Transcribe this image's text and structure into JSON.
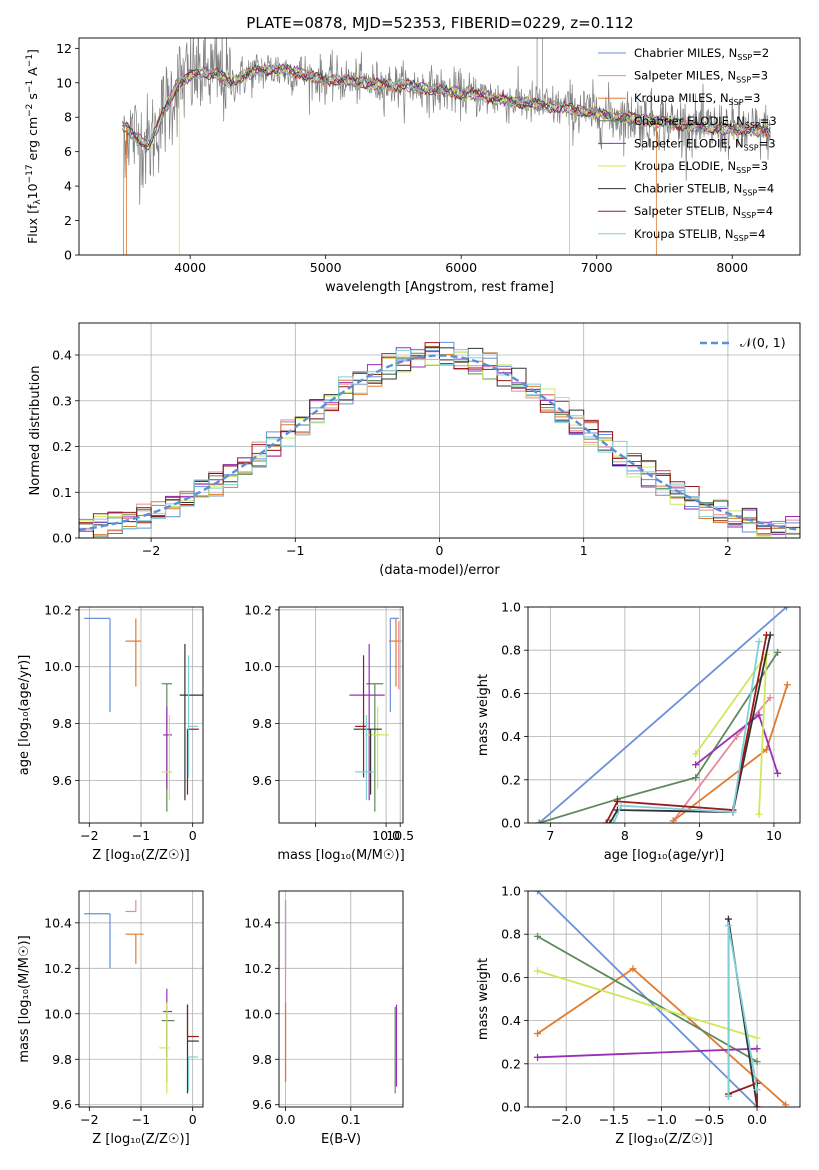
{
  "figure_title": "PLATE=0878, MJD=52353, FIBERID=0229, z=0.112",
  "series_colors": [
    "#6b8fd9",
    "#e8899b",
    "#e07a2e",
    "#5d8a5d",
    "#9a2fb5",
    "#cfe85a",
    "#333333",
    "#9b1b1b",
    "#7fd0d8"
  ],
  "data_color": "#808080",
  "chart_data": [
    {
      "id": "spectrum",
      "type": "line",
      "title": "PLATE=0878, MJD=52353, FIBERID=0229, z=0.112",
      "xlabel": "wavelength [Angstrom, rest frame]",
      "ylabel": "Flux [f$_\\lambda$10$^{-17}$ erg cm$^{-2}$ s$^{-1}$ A$^{-1}$]",
      "ylabel_parts": [
        "Flux [f",
        "λ",
        "10",
        "−17",
        " erg cm",
        "−2",
        " s",
        "−1",
        " A",
        "−1",
        "]"
      ],
      "xlim": [
        3180,
        8500
      ],
      "ylim": [
        0,
        12.6
      ],
      "xticks": [
        4000,
        5000,
        6000,
        7000,
        8000
      ],
      "yticks": [
        0,
        2,
        4,
        6,
        8,
        10,
        12
      ],
      "grid": false,
      "legend_position": "top-right",
      "legend": [
        {
          "label": "Chabrier MILES, N",
          "sub": "SSP",
          "suffix": "=2"
        },
        {
          "label": "Salpeter MILES, N",
          "sub": "SSP",
          "suffix": "=3"
        },
        {
          "label": "Kroupa MILES, N",
          "sub": "SSP",
          "suffix": "=3"
        },
        {
          "label": "Chabrier ELODIE, N",
          "sub": "SSP",
          "suffix": "=3"
        },
        {
          "label": "Salpeter ELODIE, N",
          "sub": "SSP",
          "suffix": "=3"
        },
        {
          "label": "Kroupa ELODIE, N",
          "sub": "SSP",
          "suffix": "=3"
        },
        {
          "label": "Chabrier STELIB, N",
          "sub": "SSP",
          "suffix": "=4"
        },
        {
          "label": "Salpeter STELIB, N",
          "sub": "SSP",
          "suffix": "=4"
        },
        {
          "label": "Kroupa STELIB, N",
          "sub": "SSP",
          "suffix": "=4"
        }
      ],
      "continuum": {
        "x": [
          3500,
          3600,
          3700,
          3800,
          3900,
          4000,
          4100,
          4200,
          4300,
          4400,
          4500,
          4600,
          4700,
          4800,
          4900,
          5000,
          5200,
          5400,
          5600,
          5800,
          6000,
          6200,
          6400,
          6600,
          6800,
          7000,
          7200,
          7400,
          7600,
          7800,
          8000,
          8200,
          8280
        ],
        "y": [
          7.6,
          6.8,
          6.4,
          8.2,
          9.8,
          10.4,
          10.6,
          10.5,
          10.0,
          10.4,
          10.7,
          10.8,
          10.7,
          10.6,
          10.3,
          10.2,
          10.1,
          9.9,
          9.8,
          9.6,
          9.4,
          9.2,
          8.9,
          8.7,
          8.5,
          8.2,
          8.0,
          7.8,
          7.6,
          7.4,
          7.3,
          7.2,
          7.2
        ]
      },
      "model_range": [
        3500,
        8280
      ]
    },
    {
      "id": "residual_hist",
      "type": "line",
      "xlabel": "(data-model)/error",
      "ylabel": "Normed distribution",
      "xlim": [
        -2.5,
        2.5
      ],
      "ylim": [
        0,
        0.47
      ],
      "xticks": [
        -2,
        -1,
        0,
        1,
        2
      ],
      "yticks": [
        0.0,
        0.1,
        0.2,
        0.3,
        0.4
      ],
      "grid": true,
      "legend_position": "top-right",
      "legend_label": "𝒩(0, 1)",
      "bin_width": 0.1
    },
    {
      "id": "age_vs_Z",
      "type": "scatter",
      "xlabel": "Z [log₁₀(Z/Z☉)]",
      "ylabel": "age  [log₁₀(age/yr)]",
      "xlim": [
        -2.2,
        0.2
      ],
      "ylim": [
        9.45,
        10.21
      ],
      "xticks": [
        -2,
        -1,
        0
      ],
      "yticks": [
        9.6,
        9.8,
        10.0,
        10.2
      ],
      "grid": true,
      "points": [
        {
          "x": -1.6,
          "y": 10.17,
          "xerr": [
            0.5,
            0.0
          ],
          "yerr": [
            0.33,
            0.0
          ]
        },
        {
          "x": -1.1,
          "y": 10.17,
          "xerr": [
            0.0,
            0.0
          ],
          "yerr": [
            0.0,
            0.0
          ]
        },
        {
          "x": -1.1,
          "y": 10.09,
          "xerr": [
            0.2,
            0.1
          ],
          "yerr": [
            0.16,
            0.08
          ]
        },
        {
          "x": -0.5,
          "y": 9.94,
          "xerr": [
            0.1,
            0.1
          ],
          "yerr": [
            0.45,
            0.0
          ]
        },
        {
          "x": -0.5,
          "y": 9.76,
          "xerr": [
            0.07,
            0.1
          ],
          "yerr": [
            0.19,
            0.1
          ]
        },
        {
          "x": -0.45,
          "y": 9.63,
          "xerr": [
            0.15,
            0.05
          ],
          "yerr": [
            0.1,
            0.2
          ]
        },
        {
          "x": -0.15,
          "y": 9.9,
          "xerr": [
            0.1,
            0.35
          ],
          "yerr": [
            0.37,
            0.18
          ]
        },
        {
          "x": -0.1,
          "y": 9.78,
          "xerr": [
            0.0,
            0.22
          ],
          "yerr": [
            0.23,
            0.0
          ]
        },
        {
          "x": -0.08,
          "y": 9.79,
          "xerr": [
            0.0,
            0.18
          ],
          "yerr": [
            0.18,
            0.25
          ]
        }
      ]
    },
    {
      "id": "age_vs_mass",
      "type": "scatter",
      "xlabel": "mass [log₁₀(M/M☉)]",
      "xlim": [
        6.2,
        10.6
      ],
      "ylim": [
        9.45,
        10.21
      ],
      "xticks": [
        7.5,
        10.0,
        10.5
      ],
      "xticks_labeled": [
        10.0,
        10.5
      ],
      "yticks": [
        9.6,
        9.8,
        10.0,
        10.2
      ],
      "grid": true,
      "points": [
        {
          "x": 10.15,
          "y": 10.17,
          "xerr": [
            0.0,
            0.3
          ],
          "yerr": [
            0.33,
            0.0
          ]
        },
        {
          "x": 10.45,
          "y": 10.09,
          "xerr": [
            0.0,
            0.1
          ],
          "yerr": [
            0.17,
            0.07
          ]
        },
        {
          "x": 10.35,
          "y": 10.09,
          "xerr": [
            0.25,
            0.1
          ],
          "yerr": [
            0.16,
            0.08
          ]
        },
        {
          "x": 9.6,
          "y": 9.94,
          "xerr": [
            0.3,
            0.3
          ],
          "yerr": [
            0.45,
            0.0
          ]
        },
        {
          "x": 9.4,
          "y": 9.9,
          "xerr": [
            0.7,
            0.55
          ],
          "yerr": [
            0.37,
            0.18
          ]
        },
        {
          "x": 9.7,
          "y": 9.76,
          "xerr": [
            0.4,
            0.4
          ],
          "yerr": [
            0.19,
            0.1
          ]
        },
        {
          "x": 9.45,
          "y": 9.78,
          "xerr": [
            0.6,
            0.4
          ],
          "yerr": [
            0.23,
            0.0
          ]
        },
        {
          "x": 9.2,
          "y": 9.79,
          "xerr": [
            0.3,
            0.1
          ],
          "yerr": [
            0.18,
            0.25
          ]
        },
        {
          "x": 9.3,
          "y": 9.63,
          "xerr": [
            0.4,
            0.35
          ],
          "yerr": [
            0.1,
            0.2
          ]
        }
      ]
    },
    {
      "id": "weight_vs_age",
      "type": "line",
      "xlabel": "age  [log₁₀(age/yr)]",
      "ylabel": "mass weight",
      "xlim": [
        6.7,
        10.35
      ],
      "ylim": [
        0,
        1
      ],
      "xticks": [
        7,
        8,
        9,
        10
      ],
      "yticks": [
        0.0,
        0.2,
        0.4,
        0.6,
        0.8,
        1.0
      ],
      "grid": true,
      "series": [
        {
          "color_index": 0,
          "points": [
            [
              6.85,
              0.0
            ],
            [
              10.17,
              1.0
            ]
          ]
        },
        {
          "color_index": 1,
          "points": [
            [
              8.65,
              0.01
            ],
            [
              9.5,
              0.4
            ],
            [
              9.95,
              0.58
            ]
          ]
        },
        {
          "color_index": 2,
          "points": [
            [
              8.65,
              0.01
            ],
            [
              9.9,
              0.34
            ],
            [
              10.18,
              0.64
            ]
          ]
        },
        {
          "color_index": 3,
          "points": [
            [
              6.85,
              0.0
            ],
            [
              7.9,
              0.11
            ],
            [
              8.95,
              0.21
            ],
            [
              10.05,
              0.79
            ]
          ]
        },
        {
          "color_index": 4,
          "points": [
            [
              8.95,
              0.27
            ],
            [
              9.8,
              0.5
            ],
            [
              10.05,
              0.23
            ]
          ]
        },
        {
          "color_index": 5,
          "points": [
            [
              8.95,
              0.32
            ],
            [
              9.9,
              0.78
            ],
            [
              9.8,
              0.04
            ]
          ]
        },
        {
          "color_index": 6,
          "points": [
            [
              7.8,
              0.0
            ],
            [
              7.9,
              0.06
            ],
            [
              9.45,
              0.05
            ],
            [
              9.95,
              0.87
            ]
          ]
        },
        {
          "color_index": 7,
          "points": [
            [
              7.75,
              0.0
            ],
            [
              7.9,
              0.1
            ],
            [
              9.45,
              0.06
            ],
            [
              9.9,
              0.87
            ]
          ]
        },
        {
          "color_index": 8,
          "points": [
            [
              7.85,
              0.0
            ],
            [
              7.95,
              0.08
            ],
            [
              9.45,
              0.05
            ],
            [
              9.8,
              0.84
            ]
          ]
        }
      ]
    },
    {
      "id": "mass_vs_Z",
      "type": "scatter",
      "xlabel": "Z [log₁₀(Z/Z☉)]",
      "ylabel": "mass [log₁₀(M/M☉)]",
      "xlim": [
        -2.2,
        0.2
      ],
      "ylim": [
        9.59,
        10.54
      ],
      "xticks": [
        -2,
        -1,
        0
      ],
      "yticks": [
        9.6,
        9.8,
        10.0,
        10.2,
        10.4
      ],
      "grid": true,
      "points": [
        {
          "x": -1.6,
          "y": 10.44,
          "xerr": [
            0.5,
            0.0
          ],
          "yerr": [
            0.24,
            0.0
          ]
        },
        {
          "x": -1.1,
          "y": 10.45,
          "xerr": [
            0.2,
            0.0
          ],
          "yerr": [
            0.0,
            0.05
          ]
        },
        {
          "x": -1.1,
          "y": 10.35,
          "xerr": [
            0.2,
            0.15
          ],
          "yerr": [
            0.13,
            0.0
          ]
        },
        {
          "x": -0.5,
          "y": 9.97,
          "xerr": [
            0.1,
            0.15
          ],
          "yerr": [
            0.27,
            0.0
          ]
        },
        {
          "x": -0.5,
          "y": 10.01,
          "xerr": [
            0.07,
            0.1
          ],
          "yerr": [
            0.2,
            0.1
          ]
        },
        {
          "x": -0.5,
          "y": 9.85,
          "xerr": [
            0.15,
            0.05
          ],
          "yerr": [
            0.2,
            0.2
          ]
        },
        {
          "x": -0.1,
          "y": 9.88,
          "xerr": [
            0.0,
            0.22
          ],
          "yerr": [
            0.23,
            0.16
          ]
        },
        {
          "x": -0.1,
          "y": 9.9,
          "xerr": [
            0.0,
            0.22
          ],
          "yerr": [
            0.0,
            0.14
          ]
        },
        {
          "x": -0.08,
          "y": 9.81,
          "xerr": [
            0.0,
            0.18
          ],
          "yerr": [
            0.15,
            0.0
          ]
        }
      ]
    },
    {
      "id": "mass_vs_ebv",
      "type": "scatter",
      "xlabel": "E(B-V)",
      "xlim": [
        -0.01,
        0.18
      ],
      "ylim": [
        9.59,
        10.54
      ],
      "xticks": [
        0.0,
        0.1
      ],
      "yticks": [
        9.6,
        9.8,
        10.0,
        10.2,
        10.4
      ],
      "grid": true,
      "points": [
        {
          "x": 0.0,
          "y": 10.44,
          "yerr": [
            0.24,
            0.06
          ]
        },
        {
          "x": 0.0,
          "y": 10.1,
          "yerr": [
            0.4,
            0.4
          ]
        },
        {
          "x": 0.0,
          "y": 9.9,
          "yerr": [
            0.2,
            0.15
          ]
        },
        {
          "x": 0.168,
          "y": 9.85,
          "yerr": [
            0.2,
            0.18
          ]
        },
        {
          "x": 0.17,
          "y": 9.9,
          "yerr": [
            0.22,
            0.14
          ]
        }
      ]
    },
    {
      "id": "weight_vs_Z",
      "type": "line",
      "xlabel": "Z [log₁₀(Z/Z☉)]",
      "ylabel": "mass weight",
      "xlim": [
        -2.4,
        0.45
      ],
      "ylim": [
        0,
        1
      ],
      "xticks": [
        -2.0,
        -1.5,
        -1.0,
        -0.5,
        0.0
      ],
      "yticks": [
        0.0,
        0.2,
        0.4,
        0.6,
        0.8,
        1.0
      ],
      "grid": true,
      "series": [
        {
          "color_index": 0,
          "points": [
            [
              -2.3,
              1.0
            ],
            [
              0.0,
              0.0
            ]
          ]
        },
        {
          "color_index": 2,
          "points": [
            [
              -2.3,
              0.34
            ],
            [
              -1.3,
              0.64
            ],
            [
              0.3,
              0.01
            ]
          ]
        },
        {
          "color_index": 3,
          "points": [
            [
              -2.3,
              0.79
            ],
            [
              0.0,
              0.21
            ]
          ]
        },
        {
          "color_index": 4,
          "points": [
            [
              -2.3,
              0.23
            ],
            [
              0.0,
              0.27
            ]
          ]
        },
        {
          "color_index": 5,
          "points": [
            [
              -2.3,
              0.63
            ],
            [
              0.0,
              0.32
            ]
          ]
        },
        {
          "color_index": 6,
          "points": [
            [
              -0.3,
              0.05
            ],
            [
              -0.3,
              0.87
            ],
            [
              0.0,
              0.0
            ]
          ]
        },
        {
          "color_index": 7,
          "points": [
            [
              -0.3,
              0.06
            ],
            [
              0.0,
              0.11
            ],
            [
              0.0,
              0.0
            ]
          ]
        },
        {
          "color_index": 8,
          "points": [
            [
              -0.3,
              0.05
            ],
            [
              -0.3,
              0.84
            ],
            [
              0.0,
              0.08
            ]
          ]
        }
      ]
    }
  ]
}
